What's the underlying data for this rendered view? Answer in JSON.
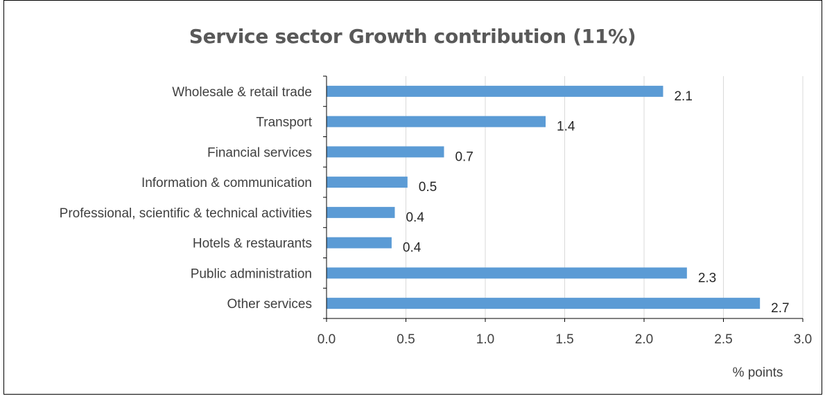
{
  "chart_data": {
    "type": "bar",
    "orientation": "horizontal",
    "title": "Service sector Growth contribution (11%)",
    "categories": [
      "Wholesale & retail trade",
      "Transport",
      "Financial services",
      "Information & communication",
      "Professional, scientific & technical activities",
      "Hotels & restaurants",
      "Public administration",
      "Other services"
    ],
    "values": [
      2.12,
      1.38,
      0.74,
      0.51,
      0.43,
      0.41,
      2.27,
      2.73
    ],
    "data_labels": [
      "2.1",
      "1.4",
      "0.7",
      "0.5",
      "0.4",
      "0.4",
      "2.3",
      "2.7"
    ],
    "xlim": [
      0,
      3.0
    ],
    "x_ticks": [
      "0.0",
      "0.5",
      "1.0",
      "1.5",
      "2.0",
      "2.5",
      "3.0"
    ],
    "xlabel": "% points",
    "ylabel": "",
    "grid": "vertical",
    "legend": "none",
    "bar_color": "#5b9bd5",
    "grid_color": "#d9d9d9",
    "axis_color": "#000000"
  }
}
